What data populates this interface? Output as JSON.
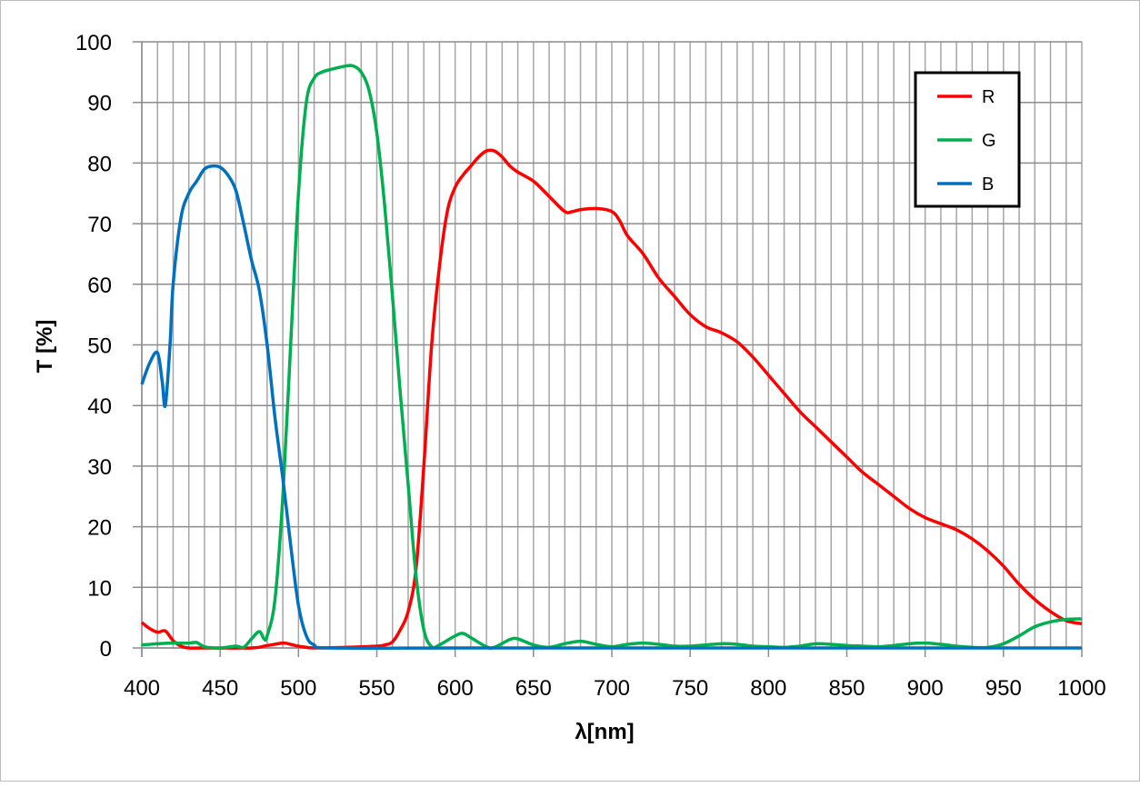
{
  "chart_data": {
    "type": "line",
    "title": "",
    "xlabel": "λ[nm]",
    "ylabel": "T [%]",
    "xlim": [
      400,
      1000
    ],
    "ylim": [
      0,
      100
    ],
    "xticks": [
      400,
      450,
      500,
      550,
      600,
      650,
      700,
      750,
      800,
      850,
      900,
      950,
      1000
    ],
    "yticks": [
      0,
      10,
      20,
      30,
      40,
      50,
      60,
      70,
      80,
      90,
      100
    ],
    "grid": {
      "x_minor_step": 10,
      "y_step": 10
    },
    "legend_position": "top-right",
    "series": [
      {
        "name": "R",
        "color": "#ff0000",
        "x": [
          400,
          405,
          410,
          415,
          420,
          425,
          430,
          440,
          470,
          480,
          490,
          495,
          500,
          510,
          530,
          550,
          555,
          560,
          565,
          570,
          575,
          580,
          585,
          590,
          595,
          600,
          605,
          610,
          615,
          620,
          625,
          630,
          635,
          640,
          650,
          660,
          670,
          675,
          680,
          690,
          700,
          705,
          710,
          720,
          730,
          740,
          750,
          760,
          770,
          780,
          790,
          800,
          810,
          820,
          830,
          840,
          850,
          860,
          870,
          880,
          890,
          900,
          910,
          920,
          930,
          940,
          950,
          960,
          970,
          980,
          990,
          1000
        ],
        "y": [
          4.2,
          3.2,
          2.6,
          2.8,
          1.2,
          0.3,
          0,
          0,
          0,
          0.4,
          0.8,
          0.6,
          0.3,
          0,
          0.1,
          0.3,
          0.5,
          1,
          3,
          6,
          13,
          30,
          50,
          63,
          72,
          76,
          78,
          79.5,
          81,
          82,
          82,
          81,
          79.5,
          78.5,
          77,
          74.5,
          72,
          72,
          72.3,
          72.5,
          72,
          70.5,
          68,
          65,
          61,
          58,
          55,
          53,
          52,
          50.5,
          48,
          45,
          42,
          39,
          36.5,
          34,
          31.5,
          29,
          27,
          25,
          23,
          21.5,
          20.5,
          19.5,
          18,
          16,
          13.5,
          10.5,
          8,
          6,
          4.5,
          4
        ]
      },
      {
        "name": "G",
        "color": "#00b050",
        "x": [
          400,
          410,
          420,
          430,
          435,
          440,
          450,
          460,
          465,
          470,
          475,
          478,
          480,
          485,
          490,
          495,
          500,
          505,
          510,
          515,
          520,
          530,
          535,
          540,
          545,
          550,
          555,
          560,
          565,
          570,
          575,
          580,
          585,
          590,
          600,
          605,
          610,
          620,
          625,
          635,
          640,
          650,
          660,
          670,
          680,
          690,
          700,
          710,
          720,
          730,
          740,
          750,
          760,
          770,
          780,
          790,
          800,
          810,
          820,
          830,
          840,
          850,
          860,
          870,
          880,
          890,
          900,
          910,
          920,
          930,
          940,
          950,
          960,
          970,
          980,
          990,
          1000
        ],
        "y": [
          0.5,
          0.7,
          0.8,
          0.8,
          0.9,
          0.2,
          0,
          0.3,
          0.1,
          1.5,
          2.7,
          1.5,
          2,
          8,
          25,
          50,
          75,
          90,
          94,
          95,
          95.4,
          96,
          96,
          95,
          92,
          85,
          73,
          58,
          42,
          27,
          12,
          3,
          0.2,
          0.5,
          2,
          2.4,
          1.7,
          0.2,
          0.1,
          1.4,
          1.5,
          0.5,
          0.1,
          0.7,
          1.1,
          0.6,
          0.2,
          0.6,
          0.8,
          0.6,
          0.3,
          0.3,
          0.5,
          0.7,
          0.6,
          0.3,
          0.2,
          0.1,
          0.3,
          0.7,
          0.6,
          0.4,
          0.3,
          0.2,
          0.4,
          0.7,
          0.8,
          0.6,
          0.3,
          0.1,
          0.1,
          0.7,
          2,
          3.5,
          4.3,
          4.7,
          4.8
        ]
      },
      {
        "name": "B",
        "color": "#0070c0",
        "x": [
          400,
          405,
          410,
          413,
          415,
          418,
          420,
          425,
          430,
          435,
          440,
          445,
          450,
          455,
          460,
          465,
          470,
          475,
          480,
          485,
          490,
          495,
          500,
          505,
          510,
          520,
          600,
          700,
          800,
          900,
          1000
        ],
        "y": [
          43.5,
          47,
          48.7,
          44,
          40,
          50,
          60,
          71,
          75,
          77,
          79,
          79.5,
          79.3,
          78,
          75.5,
          70,
          64,
          59,
          50,
          38,
          28,
          17,
          7,
          2,
          0.5,
          0,
          0,
          0,
          0,
          0,
          0
        ]
      }
    ]
  }
}
